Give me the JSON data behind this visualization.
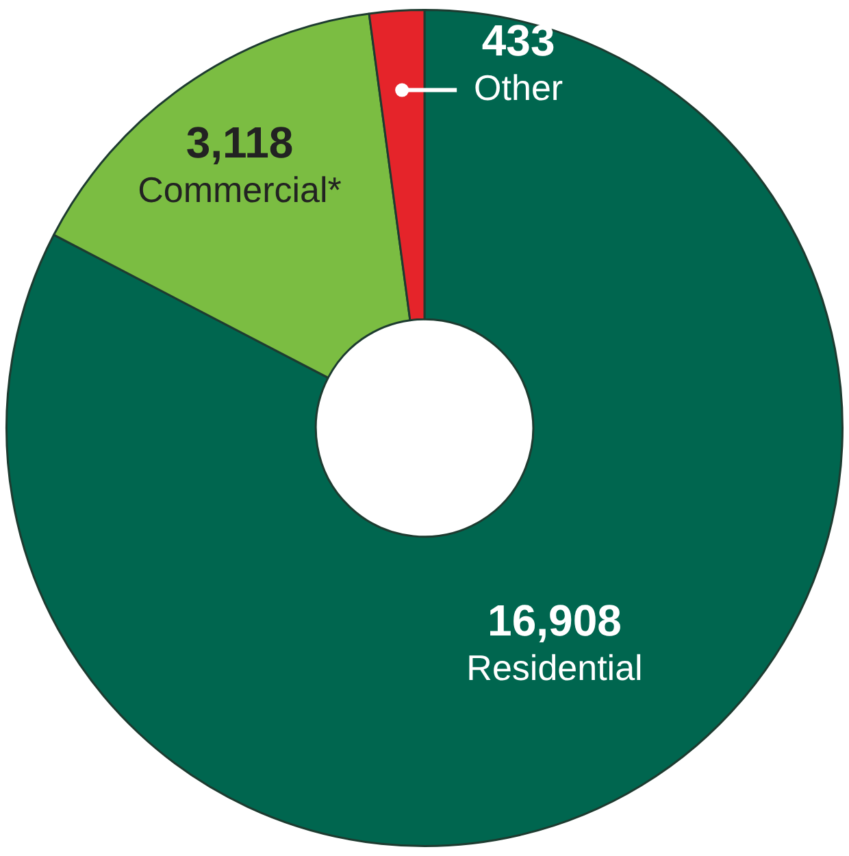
{
  "chart_data": {
    "type": "donut",
    "legend": false,
    "categories": [
      "Residential",
      "Commercial*",
      "Other"
    ],
    "values": [
      16908,
      3118,
      433
    ],
    "value_labels": [
      "16,908",
      "3,118",
      "433"
    ],
    "colors": [
      "#00664f",
      "#7bbd42",
      "#e5242a"
    ]
  }
}
